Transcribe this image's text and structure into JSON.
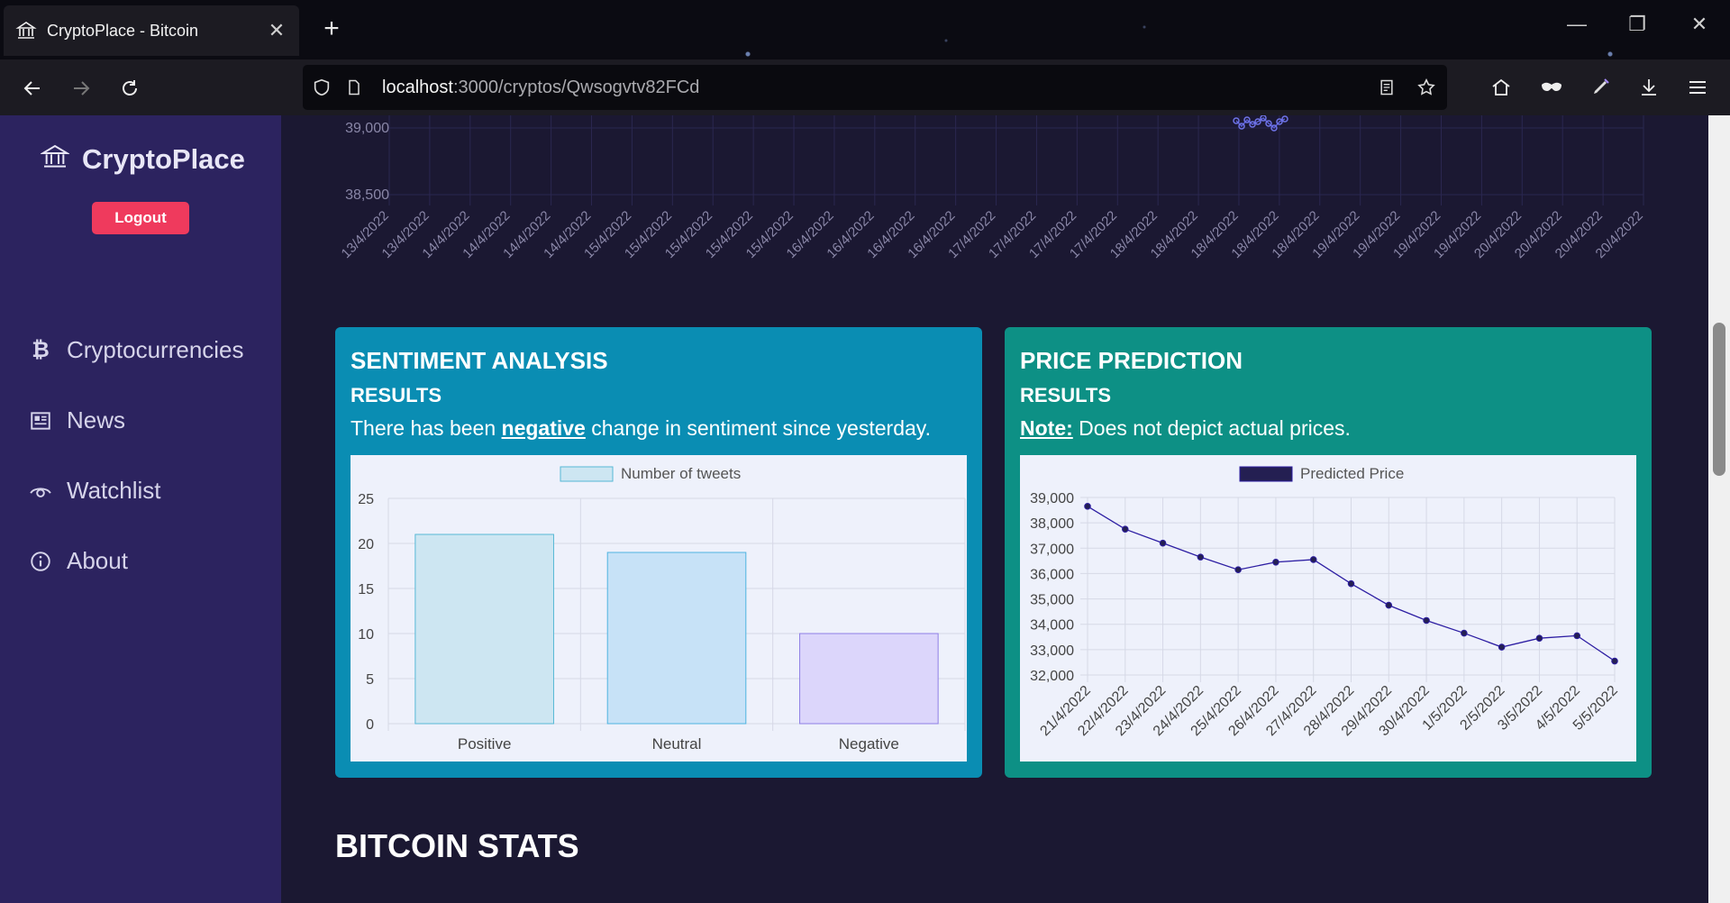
{
  "browser": {
    "tab_title": "CryptoPlace - Bitcoin",
    "url_host": "localhost",
    "url_rest": ":3000/cryptos/Qwsogvtv82FCd"
  },
  "sidebar": {
    "brand": "CryptoPlace",
    "logout_label": "Logout",
    "items": [
      {
        "label": "Cryptocurrencies",
        "icon": "bitcoin-icon"
      },
      {
        "label": "News",
        "icon": "newspaper-icon"
      },
      {
        "label": "Watchlist",
        "icon": "eye-icon"
      },
      {
        "label": "About",
        "icon": "info-icon"
      }
    ]
  },
  "top_chart": {
    "y_ticks": [
      "39,000",
      "38,500"
    ],
    "x_labels": [
      "13/4/2022",
      "13/4/2022",
      "14/4/2022",
      "14/4/2022",
      "14/4/2022",
      "14/4/2022",
      "15/4/2022",
      "15/4/2022",
      "15/4/2022",
      "15/4/2022",
      "15/4/2022",
      "16/4/2022",
      "16/4/2022",
      "16/4/2022",
      "16/4/2022",
      "17/4/2022",
      "17/4/2022",
      "17/4/2022",
      "17/4/2022",
      "18/4/2022",
      "18/4/2022",
      "18/4/2022",
      "18/4/2022",
      "18/4/2022",
      "19/4/2022",
      "19/4/2022",
      "19/4/2022",
      "19/4/2022",
      "20/4/2022",
      "20/4/2022",
      "20/4/2022",
      "20/4/2022"
    ]
  },
  "sentiment": {
    "title": "SENTIMENT ANALYSIS",
    "subtitle": "RESULTS",
    "text_before": "There has been ",
    "text_emph": "negative",
    "text_after": " change in sentiment since yesterday."
  },
  "prediction": {
    "title": "PRICE PREDICTION",
    "subtitle": "RESULTS",
    "note_label": "Note:",
    "note_text": " Does not depict actual prices."
  },
  "stats_title": "BITCOIN STATS",
  "chart_data": [
    {
      "type": "bar",
      "legend": "Number of tweets",
      "categories": [
        "Positive",
        "Neutral",
        "Negative"
      ],
      "values": [
        21,
        19,
        10
      ],
      "ylim": [
        0,
        25
      ],
      "y_ticks": [
        0,
        5,
        10,
        15,
        20,
        25
      ],
      "colors": [
        "#cde6f2",
        "#c7e2f7",
        "#dcd6fb"
      ],
      "borders": [
        "#57b8d6",
        "#4fb3e0",
        "#8e7fe6"
      ],
      "grid": true,
      "legend_position": "top"
    },
    {
      "type": "line",
      "legend": "Predicted Price",
      "x": [
        "21/4/2022",
        "22/4/2022",
        "23/4/2022",
        "24/4/2022",
        "25/4/2022",
        "26/4/2022",
        "27/4/2022",
        "28/4/2022",
        "29/4/2022",
        "30/4/2022",
        "1/5/2022",
        "2/5/2022",
        "3/5/2022",
        "4/5/2022",
        "5/5/2022"
      ],
      "values": [
        38650,
        37750,
        37200,
        36650,
        36150,
        36450,
        36550,
        35600,
        34750,
        34150,
        33650,
        33100,
        33450,
        33550,
        32550
      ],
      "ylim": [
        32000,
        39000
      ],
      "y_ticks": [
        "32,000",
        "33,000",
        "34,000",
        "35,000",
        "36,000",
        "37,000",
        "38,000",
        "39,000"
      ],
      "color": "#2d1ea3",
      "grid": true,
      "legend_position": "top"
    }
  ]
}
